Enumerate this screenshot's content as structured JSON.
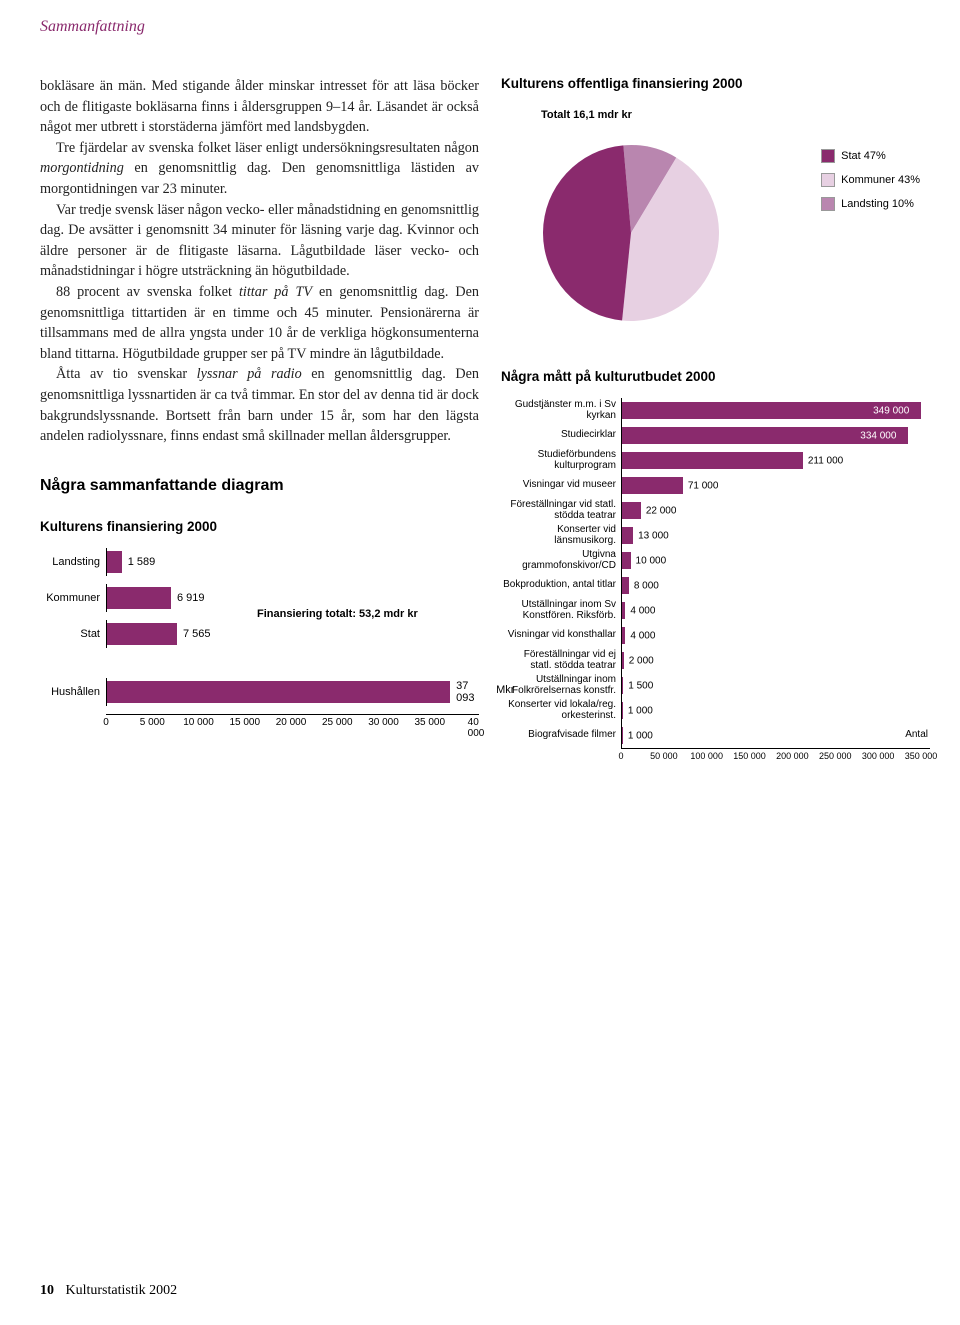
{
  "header": {
    "title": "Sammanfattning"
  },
  "body_text_html": "bokläsare än män. Med stigande ålder minskar intresset för att läsa böcker och de flitigaste bokläsarna finns i åldersgruppen 9–14 år. Läsandet är också något mer utbrett i storstäderna jämfört med landsbygden.\n   Tre fjärdelar av svenska folket läser enligt undersökningsresultaten någon <i>morgontidning</i> en genomsnittlig dag. Den genomsnittliga lästiden av morgontidningen var 23 minuter.\n   Var tredje svensk läser någon vecko- eller månadstidning en genomsnittlig dag. De avsätter i genomsnitt 34 minuter för läsning varje dag. Kvinnor och äldre personer är de flitigaste läsarna. Lågutbildade läser vecko- och månadstidningar i högre utsträckning än högutbildade.\n   88 procent av svenska folket <i>tittar på TV</i> en genomsnittlig dag. Den genomsnittliga tittartiden är en timme och 45 minuter. Pensionärerna är tillsammans med de allra yngsta under 10 år de verkliga högkonsumenterna bland tittarna. Högutbildade grupper ser på TV mindre än lågutbildade.\n   Åtta av tio svenskar <i>lyssnar på radio</i> en genomsnittlig dag. Den genomsnittliga lyssnartiden är ca två timmar. En stor del av denna tid är dock bakgrundslyssnande. Bortsett från barn under 15 år, som har den lägsta andelen radiolyssnare, finns endast små skillnader mellan åldersgrupper.",
  "section2_heading": "Några sammanfattande diagram",
  "chart1": {
    "title": "Kulturens finansiering 2000",
    "type": "bar-horizontal",
    "xmax": 40000,
    "xticks": [
      0,
      5000,
      10000,
      15000,
      20000,
      25000,
      30000,
      35000,
      40000
    ],
    "xtick_labels": [
      "0",
      "5 000",
      "10 000",
      "15 000",
      "20 000",
      "25 000",
      "30 000",
      "35 000",
      "40 000"
    ],
    "bar_color": "#8a2a6d",
    "note": "Finansiering totalt: 53,2 mdr kr",
    "unit": "Mkr",
    "rows": [
      {
        "label": "Landsting",
        "value": 1589,
        "value_label": "1 589"
      },
      {
        "label": "Kommuner",
        "value": 6919,
        "value_label": "6 919"
      },
      {
        "label": "Stat",
        "value": 7565,
        "value_label": "7 565"
      },
      {
        "label": "Hushållen",
        "value": 37093,
        "value_label": "37 093"
      }
    ],
    "gap_after_index": 2
  },
  "pie": {
    "title": "Kulturens offentliga finansiering 2000",
    "caption": "Totalt 16,1 mdr kr",
    "type": "pie",
    "slices": [
      {
        "label": "Stat 47%",
        "value": 47,
        "color": "#8a2a6d"
      },
      {
        "label": "Kommuner 43%",
        "value": 43,
        "color": "#e7d0e2"
      },
      {
        "label": "Landsting 10%",
        "value": 10,
        "color": "#b986af"
      }
    ],
    "bg": "#ffffff"
  },
  "chart2": {
    "title": "Några mått på kulturutbudet 2000",
    "type": "bar-horizontal",
    "xmax": 350000,
    "xticks": [
      0,
      50000,
      100000,
      150000,
      200000,
      250000,
      300000,
      350000
    ],
    "xtick_labels": [
      "0",
      "50 000",
      "100 000",
      "150 000",
      "200 000",
      "250 000",
      "300 000",
      "350 000"
    ],
    "bar_color": "#8a2a6d",
    "unit": "Antal",
    "rows": [
      {
        "label": "Gudstjänster m.m. i Sv kyrkan",
        "value": 349000,
        "value_label": "349 000",
        "inside": true
      },
      {
        "label": "Studiecirklar",
        "value": 334000,
        "value_label": "334 000",
        "inside": true
      },
      {
        "label": "Studieförbundens kulturprogram",
        "value": 211000,
        "value_label": "211 000"
      },
      {
        "label": "Visningar vid museer",
        "value": 71000,
        "value_label": "71 000"
      },
      {
        "label": "Föreställningar vid statl. stödda teatrar",
        "value": 22000,
        "value_label": "22 000"
      },
      {
        "label": "Konserter vid länsmusikorg.",
        "value": 13000,
        "value_label": "13 000"
      },
      {
        "label": "Utgivna grammofonskivor/CD",
        "value": 10000,
        "value_label": "10 000"
      },
      {
        "label": "Bokproduktion, antal titlar",
        "value": 8000,
        "value_label": "8 000"
      },
      {
        "label": "Utställningar inom Sv Konstfören. Riksförb.",
        "value": 4000,
        "value_label": "4 000"
      },
      {
        "label": "Visningar vid konsthallar",
        "value": 4000,
        "value_label": "4 000"
      },
      {
        "label": "Föreställningar vid ej statl. stödda teatrar",
        "value": 2000,
        "value_label": "2 000"
      },
      {
        "label": "Utställningar inom Folkrörelsernas konstfr.",
        "value": 1500,
        "value_label": "1 500"
      },
      {
        "label": "Konserter vid lokala/reg. orkesterinst.",
        "value": 1000,
        "value_label": "1 000"
      },
      {
        "label": "Biografvisade filmer",
        "value": 1000,
        "value_label": "1 000"
      }
    ]
  },
  "footer": {
    "page": "10",
    "book": "Kulturstatistik 2002"
  },
  "colors": {
    "brand": "#8a2a6d",
    "grid": "#000000",
    "bg": "#ffffff"
  }
}
